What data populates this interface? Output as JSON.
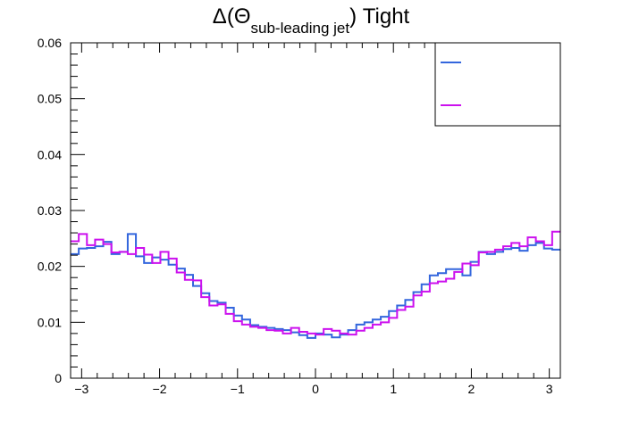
{
  "chart_data": {
    "type": "line",
    "title": {
      "prefix": "Δ(Θ",
      "subscript": "sub-leading jet",
      "suffix": ") Tight"
    },
    "xlim": [
      -3.1416,
      3.1416
    ],
    "ylim": [
      0,
      0.06
    ],
    "x_ticks": [
      -3,
      -2,
      -1,
      0,
      1,
      2,
      3
    ],
    "y_ticks": [
      0,
      0.01,
      0.02,
      0.03,
      0.04,
      0.05,
      0.06
    ],
    "y_tick_labels": [
      "0",
      "0.01",
      "0.02",
      "0.03",
      "0.04",
      "0.05",
      "0.06"
    ],
    "bins": 60,
    "series": [
      {
        "name": "",
        "color": "#3366dd",
        "values": [
          0.0222,
          0.0232,
          0.0233,
          0.0236,
          0.0244,
          0.0222,
          0.0226,
          0.0258,
          0.0218,
          0.0206,
          0.0216,
          0.0212,
          0.0203,
          0.0196,
          0.0185,
          0.0165,
          0.0152,
          0.0138,
          0.0135,
          0.0126,
          0.0112,
          0.0105,
          0.0095,
          0.0092,
          0.009,
          0.0088,
          0.0086,
          0.0082,
          0.0077,
          0.0072,
          0.008,
          0.0078,
          0.0073,
          0.0078,
          0.0086,
          0.0096,
          0.01,
          0.0105,
          0.011,
          0.012,
          0.013,
          0.014,
          0.0154,
          0.0168,
          0.0184,
          0.0188,
          0.0195,
          0.0195,
          0.0184,
          0.0208,
          0.0226,
          0.0222,
          0.0226,
          0.0231,
          0.0233,
          0.0228,
          0.0238,
          0.0242,
          0.0232,
          0.023
        ]
      },
      {
        "name": "",
        "color": "#cc11ee",
        "values": [
          0.0245,
          0.0258,
          0.0238,
          0.0248,
          0.024,
          0.0225,
          0.0226,
          0.0222,
          0.0233,
          0.0221,
          0.0206,
          0.0226,
          0.0214,
          0.0189,
          0.0176,
          0.0175,
          0.0145,
          0.013,
          0.0132,
          0.0115,
          0.0102,
          0.0096,
          0.0092,
          0.009,
          0.0086,
          0.0085,
          0.008,
          0.009,
          0.0083,
          0.008,
          0.0078,
          0.0088,
          0.0085,
          0.008,
          0.0078,
          0.0085,
          0.009,
          0.0096,
          0.01,
          0.0108,
          0.0122,
          0.0128,
          0.0148,
          0.0155,
          0.017,
          0.0173,
          0.0178,
          0.019,
          0.0205,
          0.0202,
          0.0225,
          0.0226,
          0.023,
          0.0236,
          0.0242,
          0.0236,
          0.0252,
          0.0245,
          0.0238,
          0.0262
        ]
      }
    ]
  }
}
